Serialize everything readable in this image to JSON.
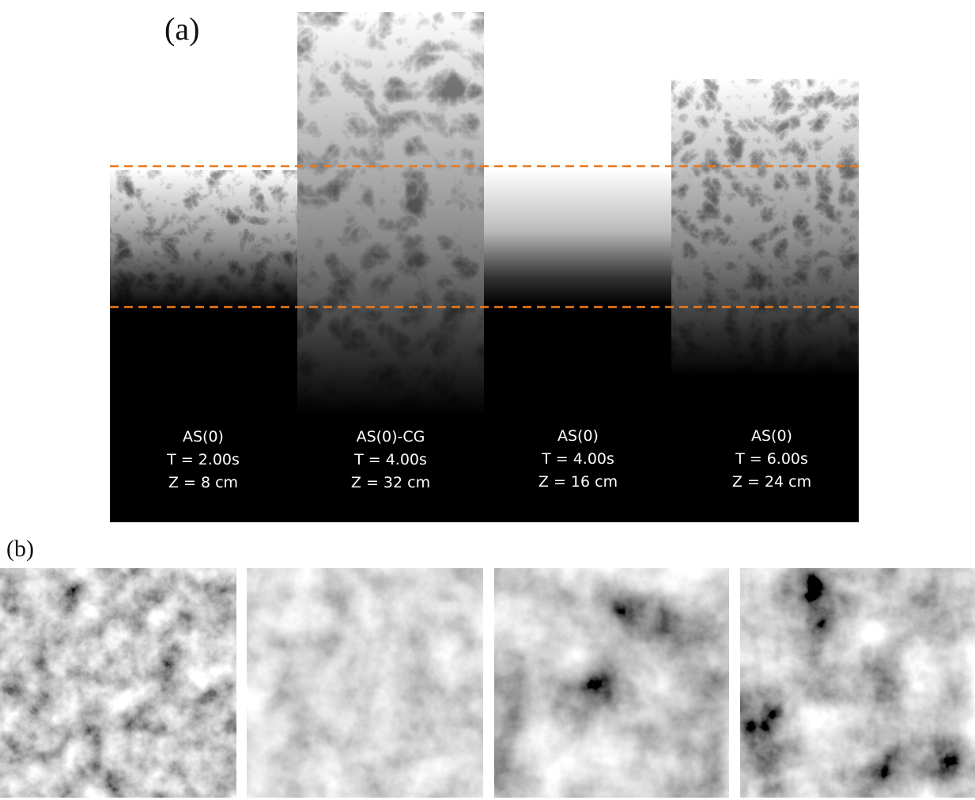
{
  "panel_a": {
    "label": "(a)",
    "panels": [
      {
        "lines": [
          "AS(0)",
          "T = 2.00s",
          "Z = 8 cm"
        ]
      },
      {
        "lines": [
          "AS(0)-CG",
          "T = 4.00s",
          "Z = 32 cm"
        ]
      },
      {
        "lines": [
          "AS(0)",
          "T = 4.00s",
          "Z = 16 cm"
        ]
      },
      {
        "lines": [
          "AS(0)",
          "T = 6.00s",
          "Z = 24 cm"
        ]
      }
    ]
  },
  "panel_b": {
    "label": "(b)"
  }
}
